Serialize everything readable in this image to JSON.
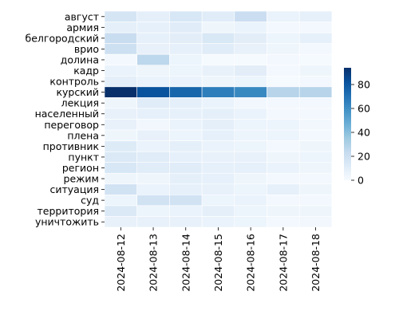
{
  "chart_data": {
    "type": "heatmap",
    "x_categories": [
      "2024-08-12",
      "2024-08-13",
      "2024-08-14",
      "2024-08-15",
      "2024-08-16",
      "2024-08-17",
      "2024-08-18"
    ],
    "y_categories": [
      "август",
      "армия",
      "белгородский",
      "врио",
      "долина",
      "кадр",
      "контроль",
      "курский",
      "лекция",
      "населенный",
      "переговор",
      "плена",
      "противник",
      "пункт",
      "регион",
      "режим",
      "ситуация",
      "суд",
      "территория",
      "уничтожить"
    ],
    "values": [
      [
        16,
        9,
        15,
        11,
        21,
        6,
        8
      ],
      [
        9,
        8,
        11,
        4,
        6,
        2,
        2
      ],
      [
        22,
        8,
        10,
        14,
        10,
        5,
        8
      ],
      [
        20,
        7,
        8,
        11,
        7,
        4,
        2
      ],
      [
        2,
        26,
        5,
        1,
        1,
        2,
        1
      ],
      [
        6,
        4,
        5,
        7,
        10,
        2,
        4
      ],
      [
        9,
        6,
        6,
        4,
        5,
        1,
        2
      ],
      [
        94,
        82,
        75,
        66,
        62,
        28,
        28
      ],
      [
        4,
        11,
        9,
        6,
        3,
        2,
        2
      ],
      [
        7,
        8,
        8,
        9,
        6,
        2,
        2
      ],
      [
        7,
        3,
        6,
        9,
        5,
        5,
        3
      ],
      [
        4,
        7,
        5,
        8,
        5,
        5,
        2
      ],
      [
        12,
        6,
        9,
        6,
        5,
        2,
        4
      ],
      [
        13,
        11,
        8,
        7,
        7,
        4,
        5
      ],
      [
        15,
        11,
        11,
        8,
        8,
        6,
        4
      ],
      [
        4,
        4,
        9,
        8,
        4,
        2,
        2
      ],
      [
        18,
        6,
        8,
        7,
        5,
        8,
        4
      ],
      [
        5,
        18,
        18,
        5,
        6,
        2,
        2
      ],
      [
        13,
        5,
        6,
        9,
        5,
        4,
        4
      ],
      [
        7,
        7,
        7,
        6,
        5,
        2,
        3
      ]
    ],
    "colormap": "Blues",
    "vmin": 0,
    "vmax": 94,
    "colorbar_ticks": [
      0,
      20,
      40,
      60,
      80
    ],
    "colorbar_tick_labels": [
      "0",
      "20",
      "40",
      "60",
      "80"
    ],
    "title": "",
    "xlabel": "",
    "ylabel": ""
  }
}
